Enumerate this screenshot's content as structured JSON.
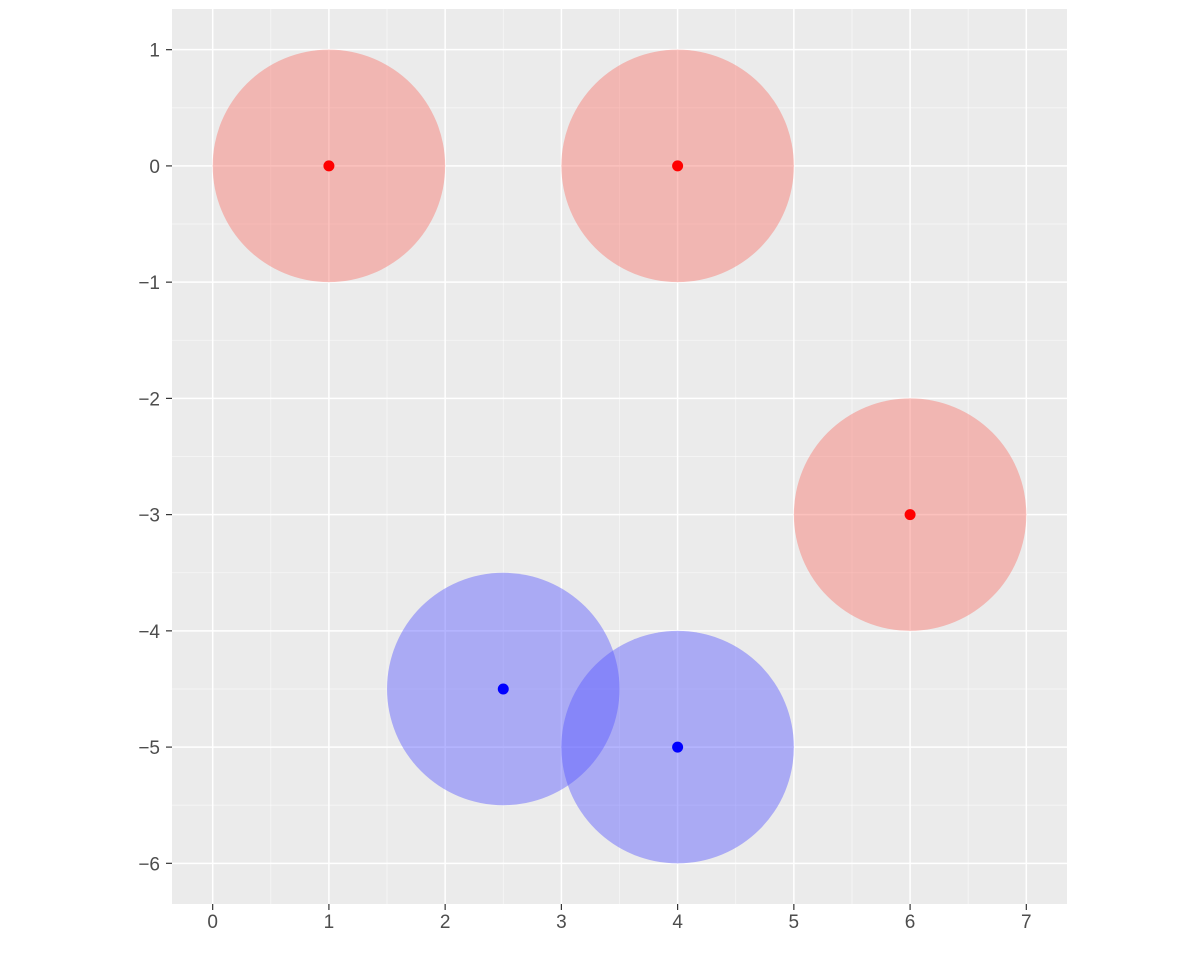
{
  "chart_data": {
    "type": "scatter",
    "title": "",
    "xlabel": "",
    "ylabel": "",
    "xlim": [
      -0.35,
      7.35
    ],
    "ylim": [
      -6.35,
      1.35
    ],
    "x_ticks": [
      0,
      1,
      2,
      3,
      4,
      5,
      6,
      7
    ],
    "y_ticks": [
      1,
      0,
      -1,
      -2,
      -3,
      -4,
      -5,
      -6
    ],
    "x_tick_labels": [
      "0",
      "1",
      "2",
      "3",
      "4",
      "5",
      "6",
      "7"
    ],
    "y_tick_labels": [
      "1",
      "0",
      "−1",
      "−2",
      "−3",
      "−4",
      "−5",
      "−6"
    ],
    "grid": true,
    "legend": "none",
    "panel_background": "#ebebeb",
    "grid_color": "#ffffff",
    "tick_label_color": "#4d4d4d",
    "series": [
      {
        "color": "#ff0000",
        "circle_fill": "#f8766d",
        "circle_radius": 1,
        "points": [
          {
            "x": 1,
            "y": 0
          },
          {
            "x": 4,
            "y": 0
          },
          {
            "x": 6,
            "y": -3
          }
        ]
      },
      {
        "color": "#0000ff",
        "circle_fill": "#5c5cff",
        "circle_radius": 1,
        "points": [
          {
            "x": 2.5,
            "y": -4.5
          },
          {
            "x": 4,
            "y": -5
          }
        ]
      }
    ]
  }
}
